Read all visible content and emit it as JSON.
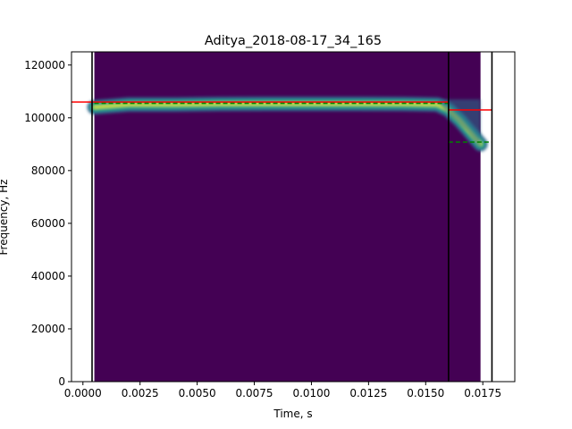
{
  "chart_data": {
    "type": "heatmap",
    "title": "Aditya_2018-08-17_34_165",
    "xlabel": "Time, s",
    "ylabel": "Frequency, Hz",
    "xlim": [
      -0.0005,
      0.0189
    ],
    "ylim": [
      0,
      125000
    ],
    "x_ticks": [
      0.0,
      0.0025,
      0.005,
      0.0075,
      0.01,
      0.0125,
      0.015,
      0.0175
    ],
    "x_tick_labels": [
      "0.0000",
      "0.0025",
      "0.0050",
      "0.0075",
      "0.0100",
      "0.0125",
      "0.0150",
      "0.0175"
    ],
    "y_ticks": [
      0,
      20000,
      40000,
      60000,
      80000,
      100000,
      120000
    ],
    "y_tick_labels": [
      "0",
      "20000",
      "40000",
      "60000",
      "80000",
      "100000",
      "120000"
    ],
    "grid": false,
    "colormap": "viridis",
    "spectrogram_extent": {
      "t_start": 0.0005,
      "t_end": 0.0174,
      "f_min": 0,
      "f_max": 125000
    },
    "background_color": "#440154",
    "band": {
      "t": [
        0.0005,
        0.002,
        0.004,
        0.006,
        0.008,
        0.01,
        0.012,
        0.014,
        0.0155,
        0.016,
        0.0165,
        0.017,
        0.0174
      ],
      "f": [
        104000,
        105000,
        105000,
        105200,
        105300,
        105300,
        105300,
        105200,
        105000,
        103000,
        99000,
        94000,
        90000
      ]
    },
    "vertical_lines": [
      {
        "x": 0.0004,
        "color": "#000000"
      },
      {
        "x": 0.016,
        "color": "#000000"
      },
      {
        "x": 0.0179,
        "color": "#000000"
      }
    ],
    "horizontal_segments": [
      {
        "x0": -0.0005,
        "x1": 0.016,
        "y": 106000,
        "color": "#ff0000",
        "style": "solid"
      },
      {
        "x0": 0.0005,
        "x1": 0.016,
        "y": 105500,
        "color": "#008000",
        "style": "dashed"
      },
      {
        "x0": 0.016,
        "x1": 0.0179,
        "y": 103000,
        "color": "#ff0000",
        "style": "solid"
      },
      {
        "x0": 0.016,
        "x1": 0.0179,
        "y": 90800,
        "color": "#008000",
        "style": "dashed"
      }
    ]
  }
}
